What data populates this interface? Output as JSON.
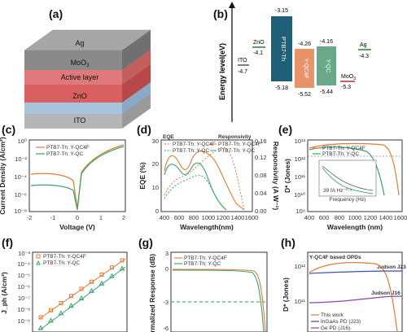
{
  "figure": {
    "panels": [
      "(a)",
      "(b)",
      "(c)",
      "(d)",
      "(e)",
      "(f)",
      "(g)",
      "(h)"
    ]
  },
  "device_stack": {
    "layers": [
      "Ag",
      "MoO3",
      "Active layer",
      "ZnO",
      "ITO"
    ],
    "colors": {
      "ag": "#8a8a8a",
      "moo3": "#e07a7a",
      "active": "#d96060",
      "zno": "#a8c4dd",
      "ito": "#bfbfbf"
    }
  },
  "energy": {
    "ylabel": "Energy level(eV)",
    "levels": [
      {
        "name": "ITO",
        "value": "-4.7"
      },
      {
        "name": "ZnO",
        "value": "-4.1"
      },
      {
        "name": "PTB7-Th",
        "top": "-3.15",
        "bottom": "-5.18"
      },
      {
        "name": "Y-QC4F",
        "top": "-4.26",
        "bottom": "-5.52"
      },
      {
        "name": "Y-QC",
        "top": "-4.16",
        "bottom": "-5.44"
      },
      {
        "name": "MoO3",
        "value": "-5.3"
      },
      {
        "name": "Ag",
        "value": "-4.3"
      }
    ],
    "colors": {
      "ptb7": "#1f5f77",
      "yqc4f": "#e8936a",
      "yqc": "#6aa889",
      "zno": "#2e7d32",
      "moo3": "#c62828",
      "ito": "#555"
    }
  },
  "chart_data": [
    {
      "panel": "(c)",
      "type": "line",
      "xlabel": "Voltage (V)",
      "ylabel": "Current Density (A/cm²)",
      "xticks": [
        "-2",
        "-1",
        "0",
        "1",
        "2"
      ],
      "yticks": [
        "10⁰",
        "10⁻²",
        "10⁻⁴",
        "10⁻⁶",
        "10⁻⁸"
      ],
      "series": [
        {
          "name": "PTB7-Th: Y-QC4F",
          "color": "#e07b39"
        },
        {
          "name": "PTB7-Th: Y-QC",
          "color": "#3aa36b"
        }
      ]
    },
    {
      "panel": "(d)",
      "type": "line",
      "xlabel": "Wavelength(nm)",
      "ylabel": "EQE (%)",
      "ylabel2": "Responsivity (A W⁻¹)",
      "xticks": [
        "400",
        "600",
        "800",
        "1000",
        "1200",
        "1400",
        "1600"
      ],
      "yticks": [
        "0",
        "10",
        "20",
        "30"
      ],
      "y2ticks": [
        "0.00",
        "0.04",
        "0.08",
        "0.12",
        "0.16"
      ],
      "legend_headers": [
        "EQE",
        "Responsivity"
      ],
      "series": [
        {
          "name": "PTB7-Th: Y-QC4F",
          "color": "#e07b39"
        },
        {
          "name": "PTB7-Th: Y-QC",
          "color": "#3aa36b"
        },
        {
          "name": "PTB7-Th: Y-QC4F",
          "color": "#e07b39"
        },
        {
          "name": "PTB7-Th: Y-QC",
          "color": "#3aa36b"
        }
      ]
    },
    {
      "panel": "(e)",
      "type": "line",
      "xlabel": "Wavelength (nm)",
      "ylabel": "D* (Jones)",
      "xticks": [
        "400",
        "600",
        "800",
        "1000",
        "1200",
        "1400",
        "1600"
      ],
      "yticks": [
        "10¹³",
        "10¹²",
        "10¹¹",
        "10¹⁰",
        "10⁹"
      ],
      "series": [
        {
          "name": "PTB7-Th: Y-QC4F",
          "color": "#e07b39"
        },
        {
          "name": "PTB7-Th: Y-QC",
          "color": "#3aa36b"
        }
      ],
      "inset": {
        "xlabel": "Frequency (Hz)",
        "annotation": "39 fA Hz⁻⁰·⁵"
      }
    },
    {
      "panel": "(f)",
      "type": "scatter",
      "ylabel": "J_ph (A/cm²)",
      "yticks": [
        "10⁻³",
        "10⁻⁴",
        "10⁻⁵",
        "10⁻⁶",
        "10⁻⁷",
        "10⁻⁸",
        "10⁻⁹"
      ],
      "series": [
        {
          "name": "PTB7-Th: Y-QC4F",
          "color": "#e07b39"
        },
        {
          "name": "PTB7-Th: Y-QC",
          "color": "#3aa36b"
        }
      ]
    },
    {
      "panel": "(g)",
      "type": "line",
      "ylabel": "Normalized Response (dB)",
      "yticks": [
        "3",
        "0",
        "-3",
        "-6"
      ],
      "series": [
        {
          "name": "PTB7-Th: Y-QC4F",
          "color": "#e07b39"
        },
        {
          "name": "PTB7-Th: Y-QC",
          "color": "#3aa36b"
        }
      ]
    },
    {
      "panel": "(h)",
      "type": "line",
      "ylabel": "D* (Jones)",
      "yticks": [
        "10¹²",
        "10¹¹"
      ],
      "title": "Y-QC4F based OPDs",
      "annotations": [
        "Judson J23",
        "Judson J16"
      ],
      "series": [
        {
          "name": "This work",
          "color": "#e07b39"
        },
        {
          "name": "InGaAs PD (J23)",
          "color": "#3b4da8"
        },
        {
          "name": "Ge PD (J16)",
          "color": "#8e44ad"
        }
      ]
    }
  ]
}
